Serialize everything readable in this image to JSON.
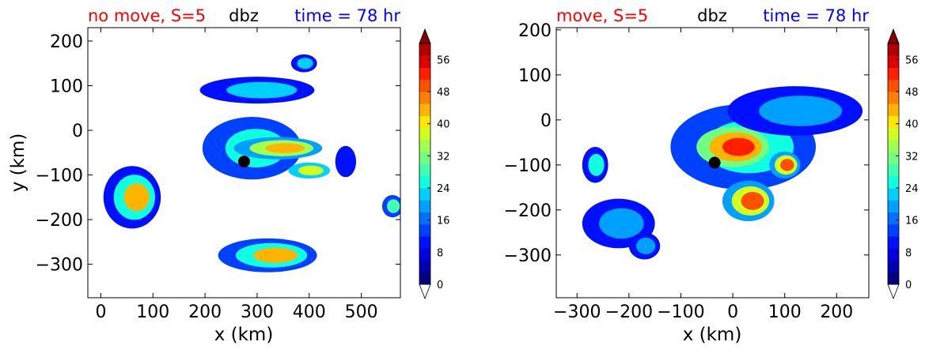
{
  "colorbar": {
    "ticks": [
      "0",
      "8",
      "16",
      "24",
      "32",
      "40",
      "48",
      "56"
    ],
    "tick_values": [
      0,
      8,
      16,
      24,
      32,
      40,
      48,
      56
    ],
    "vmin": 0,
    "vmax": 60,
    "colors": [
      "#000080",
      "#0000b0",
      "#0000e0",
      "#0010ff",
      "#0040ff",
      "#0070ff",
      "#00a0ff",
      "#00d0ff",
      "#10ffe0",
      "#40ffb0",
      "#70ff80",
      "#a0ff50",
      "#d0ff20",
      "#ffe800",
      "#ffb400",
      "#ff8000",
      "#ff5000",
      "#ff1e00",
      "#e00000",
      "#b00000"
    ]
  },
  "chart_data": [
    {
      "type": "contourf",
      "title_left": "no move, S=5",
      "title_center": "dbz",
      "title_right": "time = 78 hr",
      "xlabel": "x (km)",
      "ylabel": "y (km)",
      "xlim": [
        -25,
        575
      ],
      "ylim": [
        -375,
        230
      ],
      "xticks": [
        0,
        100,
        200,
        300,
        400,
        500
      ],
      "yticks": [
        200,
        100,
        0,
        -100,
        -200,
        -300
      ],
      "xtick_labels": [
        "0",
        "100",
        "200",
        "300",
        "400",
        "500"
      ],
      "ytick_labels": [
        "200",
        "100",
        "0",
        "−100",
        "−200",
        "−300"
      ],
      "center_marker": {
        "x": 275,
        "y": -70
      },
      "features": [
        {
          "name": "main-storm-body",
          "cx": 290,
          "cy": -40,
          "rx": 95,
          "ry": 70,
          "levels": [
            12,
            26
          ]
        },
        {
          "name": "spiral-band",
          "cx": 340,
          "cy": -40,
          "rx": 85,
          "ry": 25,
          "levels": [
            20,
            34,
            44
          ]
        },
        {
          "name": "band-extension",
          "cx": 400,
          "cy": -90,
          "rx": 40,
          "ry": 18,
          "levels": [
            22,
            38
          ]
        },
        {
          "name": "north-band",
          "cx": 300,
          "cy": 90,
          "rx": 110,
          "ry": 30,
          "levels": [
            10,
            22
          ]
        },
        {
          "name": "northeast-cell",
          "cx": 390,
          "cy": 150,
          "rx": 25,
          "ry": 20,
          "levels": [
            10,
            22
          ]
        },
        {
          "name": "west-cell",
          "cx": 60,
          "cy": -150,
          "rx": 55,
          "ry": 70,
          "levels": [
            10,
            26,
            44
          ]
        },
        {
          "name": "south-band",
          "cx": 320,
          "cy": -280,
          "rx": 95,
          "ry": 38,
          "levels": [
            12,
            26,
            42
          ]
        },
        {
          "name": "east-cell",
          "cx": 470,
          "cy": -70,
          "rx": 20,
          "ry": 35,
          "levels": [
            10
          ]
        },
        {
          "name": "far-east-cell",
          "cx": 560,
          "cy": -170,
          "rx": 20,
          "ry": 25,
          "levels": [
            12,
            28
          ]
        }
      ]
    },
    {
      "type": "contourf",
      "title_left": "move, S=5",
      "title_center": "dbz",
      "title_right": "time = 78 hr",
      "xlabel": "x (km)",
      "ylabel": "",
      "xlim": [
        -340,
        262
      ],
      "ylim": [
        -395,
        205
      ],
      "xticks": [
        -300,
        -200,
        -100,
        0,
        100,
        200
      ],
      "yticks": [
        200,
        100,
        0,
        -100,
        -200,
        -300
      ],
      "xtick_labels": [
        "−300",
        "−200",
        "−100",
        "0",
        "100",
        "200"
      ],
      "ytick_labels": [
        "200",
        "100",
        "0",
        "−100",
        "−200",
        "−300"
      ],
      "center_marker": {
        "x": -35,
        "y": -95
      },
      "features": [
        {
          "name": "main-storm-body",
          "cx": 20,
          "cy": -60,
          "rx": 140,
          "ry": 95,
          "levels": [
            12,
            24
          ]
        },
        {
          "name": "core",
          "cx": 0,
          "cy": -60,
          "rx": 70,
          "ry": 45,
          "levels": [
            30,
            44,
            52
          ]
        },
        {
          "name": "northeast-field",
          "cx": 120,
          "cy": 20,
          "rx": 130,
          "ry": 55,
          "levels": [
            10,
            20
          ]
        },
        {
          "name": "south-cell",
          "cx": 30,
          "cy": -180,
          "rx": 50,
          "ry": 45,
          "levels": [
            20,
            38,
            48
          ]
        },
        {
          "name": "east-cell",
          "cx": 100,
          "cy": -100,
          "rx": 30,
          "ry": 30,
          "levels": [
            20,
            38,
            50
          ]
        },
        {
          "name": "west-cell",
          "cx": -265,
          "cy": -100,
          "rx": 25,
          "ry": 40,
          "levels": [
            10,
            24
          ]
        },
        {
          "name": "southwest-band",
          "cx": -220,
          "cy": -230,
          "rx": 70,
          "ry": 55,
          "levels": [
            10,
            20
          ]
        },
        {
          "name": "south-small-cell",
          "cx": -170,
          "cy": -280,
          "rx": 30,
          "ry": 30,
          "levels": [
            10,
            20
          ]
        }
      ]
    }
  ]
}
